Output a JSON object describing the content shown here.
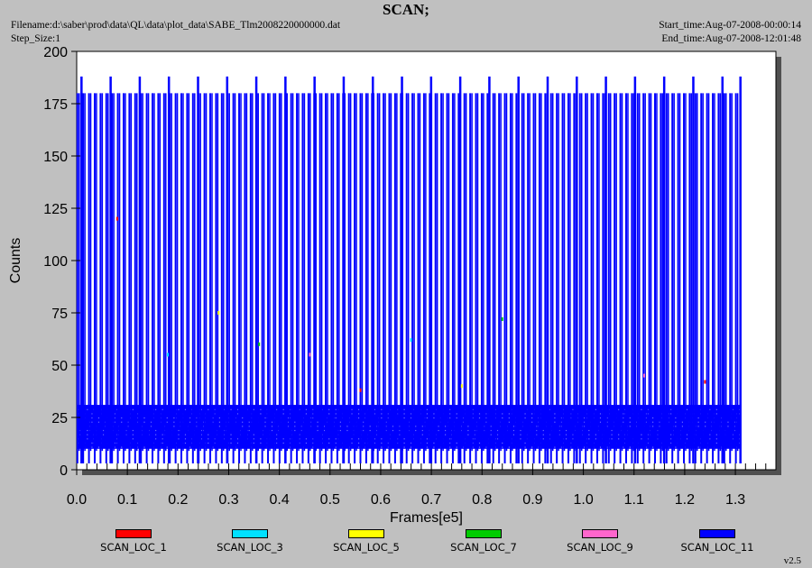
{
  "header": {
    "title": "SCAN;",
    "filename": "Filename:d:\\saber\\prod\\data\\QL\\data\\plot_data\\SABE_Tlm2008220000000.dat",
    "step_size": "Step_Size:1",
    "start_time": "Start_time:Aug-07-2008-00:00:14",
    "end_time": "End_time:Aug-07-2008-12:01:48",
    "version": "v2.5"
  },
  "colors": {
    "background": "#c0c0c0",
    "plot_bg": "#ffffff",
    "shadow": "#505050",
    "dominant_series": "#0000ff"
  },
  "chart_data": {
    "type": "line",
    "title": "SCAN;",
    "xlabel": "Frames[e5]",
    "ylabel": "Counts",
    "xlim": [
      0,
      1.38
    ],
    "ylim": [
      0,
      200
    ],
    "x_ticks": [
      0.0,
      0.1,
      0.2,
      0.3,
      0.4,
      0.5,
      0.6,
      0.7,
      0.8,
      0.9,
      1.0,
      1.1,
      1.2,
      1.3
    ],
    "x_tick_labels": [
      "0.0",
      "0.1",
      "0.2",
      "0.3",
      "0.4",
      "0.5",
      "0.6",
      "0.7",
      "0.8",
      "0.9",
      "1.0",
      "1.1",
      "1.2",
      "1.3"
    ],
    "y_ticks": [
      0,
      25,
      50,
      75,
      100,
      125,
      150,
      175,
      200
    ],
    "y_tick_labels": [
      "0",
      "25",
      "50",
      "75",
      "100",
      "125",
      "150",
      "175",
      "200"
    ],
    "grid": false,
    "legend_position": "bottom",
    "data_x_range": [
      0,
      1.31
    ],
    "series": [
      {
        "name": "SCAN_LOC_1",
        "color": "#ff0000"
      },
      {
        "name": "SCAN_LOC_3",
        "color": "#00e0ff"
      },
      {
        "name": "SCAN_LOC_5",
        "color": "#ffff00"
      },
      {
        "name": "SCAN_LOC_7",
        "color": "#00cc00"
      },
      {
        "name": "SCAN_LOC_9",
        "color": "#ff66cc"
      },
      {
        "name": "SCAN_LOC_11",
        "color": "#0000ff"
      }
    ],
    "pattern": {
      "scan_period": 0.0114,
      "scan_phase": 0.0014,
      "scan_peak": 180,
      "scan_low": 3,
      "major_period": 0.0575,
      "major_phase": 0.0095,
      "major_peak": 188,
      "band_min": 10,
      "band_max": 31,
      "band_core": [
        15,
        27
      ]
    }
  }
}
